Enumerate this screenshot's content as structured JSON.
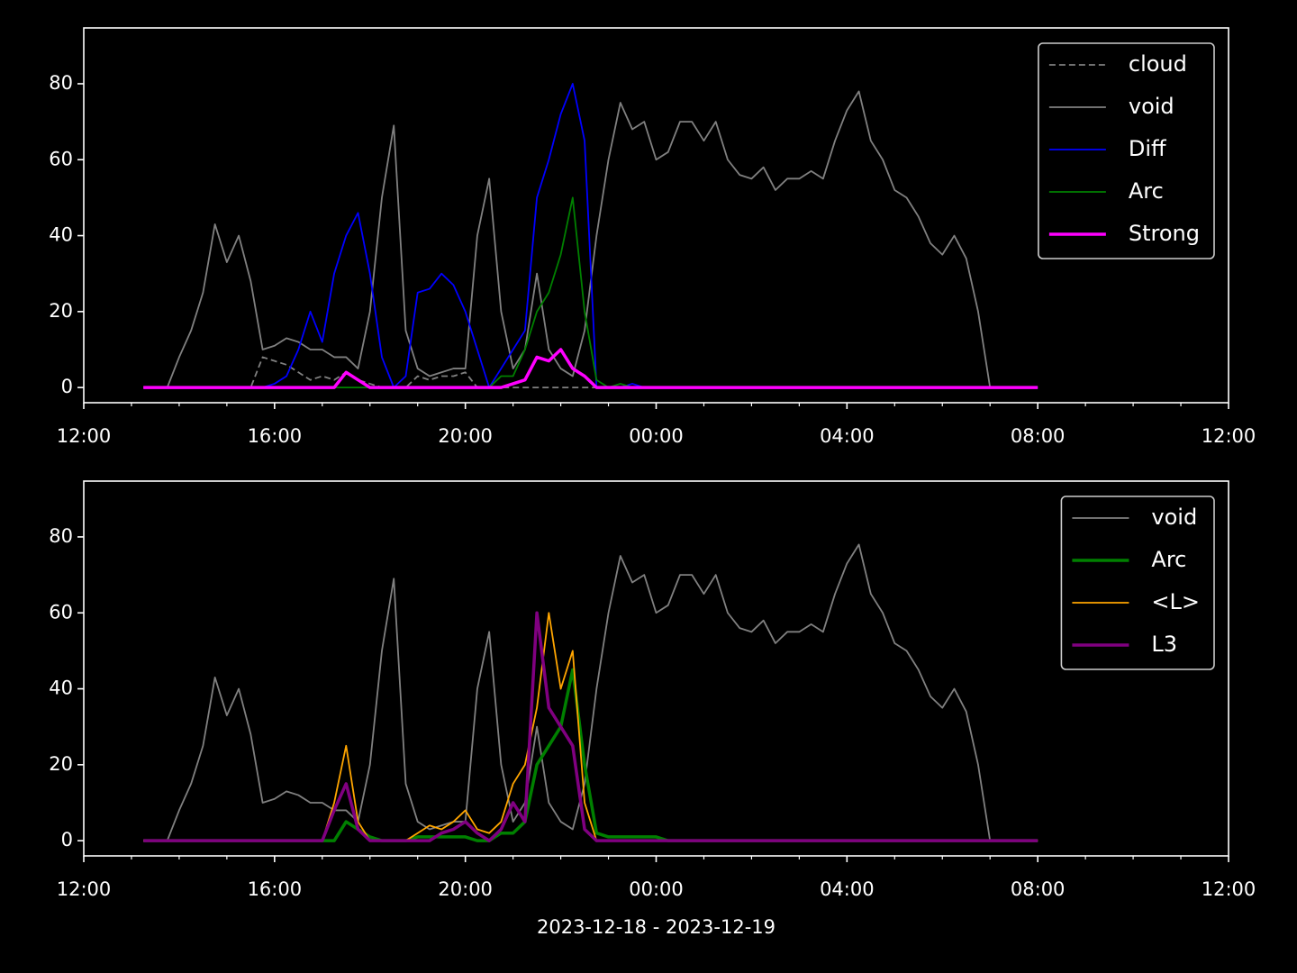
{
  "chart_data": [
    {
      "type": "line",
      "legend": "upper right",
      "xlim": [
        12,
        36
      ],
      "ylim": [
        -4,
        94.7
      ],
      "xticks": [
        {
          "value": 12,
          "label": "12:00"
        },
        {
          "value": 16,
          "label": "16:00"
        },
        {
          "value": 20,
          "label": "20:00"
        },
        {
          "value": 24,
          "label": "00:00"
        },
        {
          "value": 28,
          "label": "04:00"
        },
        {
          "value": 32,
          "label": "08:00"
        },
        {
          "value": 36,
          "label": "12:00"
        }
      ],
      "xminorticks": [
        13,
        14,
        15,
        17,
        18,
        19,
        21,
        22,
        23,
        25,
        26,
        27,
        29,
        30,
        31,
        33,
        34,
        35
      ],
      "yticks": [
        0,
        20,
        40,
        60,
        80
      ],
      "x": [
        13.25,
        13.5,
        13.75,
        14,
        14.25,
        14.5,
        14.75,
        15,
        15.25,
        15.5,
        15.75,
        16,
        16.25,
        16.5,
        16.75,
        17,
        17.25,
        17.5,
        17.75,
        18,
        18.25,
        18.5,
        18.75,
        19,
        19.25,
        19.5,
        19.75,
        20,
        20.25,
        20.5,
        20.75,
        21,
        21.25,
        21.5,
        21.75,
        22,
        22.25,
        22.5,
        22.75,
        23,
        23.25,
        23.5,
        23.75,
        24,
        24.25,
        24.5,
        24.75,
        25,
        25.25,
        25.5,
        25.75,
        26,
        26.25,
        26.5,
        26.75,
        27,
        27.25,
        27.5,
        27.75,
        28,
        28.25,
        28.5,
        28.75,
        29,
        29.25,
        29.5,
        29.75,
        30,
        30.25,
        30.5,
        30.75,
        31,
        31.25,
        31.5,
        31.75,
        32
      ],
      "series": [
        {
          "name": "cloud",
          "color": "#808080",
          "linestyle": "dashed",
          "values": [
            0,
            0,
            0,
            0,
            0,
            0,
            0,
            0,
            0,
            0,
            8,
            7,
            6,
            4,
            2,
            3,
            2,
            4,
            2,
            1,
            0,
            0,
            0,
            3,
            2,
            3,
            3,
            4,
            0,
            0,
            0,
            0,
            0,
            0,
            0,
            0,
            0,
            0,
            0,
            0,
            0,
            0,
            0,
            0,
            0,
            0,
            0,
            0,
            0,
            0,
            0,
            0,
            0,
            0,
            0,
            0,
            0,
            0,
            0,
            0,
            0,
            0,
            0,
            0,
            0,
            0,
            0,
            0,
            0,
            0,
            0,
            0,
            0,
            0,
            0,
            0
          ]
        },
        {
          "name": "void",
          "color": "#808080",
          "values": [
            0,
            0,
            0,
            8,
            15,
            25,
            43,
            33,
            40,
            28,
            10,
            11,
            13,
            12,
            10,
            10,
            8,
            8,
            5,
            20,
            50,
            69,
            15,
            5,
            3,
            4,
            5,
            5,
            40,
            55,
            20,
            5,
            10,
            30,
            10,
            5,
            3,
            15,
            40,
            60,
            75,
            68,
            70,
            60,
            62,
            70,
            70,
            65,
            70,
            60,
            56,
            55,
            58,
            52,
            55,
            55,
            57,
            55,
            65,
            73,
            78,
            65,
            60,
            52,
            50,
            45,
            38,
            35,
            40,
            34,
            20,
            0,
            0,
            0,
            0,
            0
          ]
        },
        {
          "name": "Diff",
          "color": "#0000ff",
          "values": [
            0,
            0,
            0,
            0,
            0,
            0,
            0,
            0,
            0,
            0,
            0,
            1,
            3,
            10,
            20,
            12,
            30,
            40,
            46,
            30,
            8,
            0,
            3,
            25,
            26,
            30,
            27,
            20,
            10,
            0,
            5,
            10,
            15,
            50,
            60,
            72,
            80,
            65,
            0,
            0,
            0,
            1,
            0,
            0,
            0,
            0,
            0,
            0,
            0,
            0,
            0,
            0,
            0,
            0,
            0,
            0,
            0,
            0,
            0,
            0,
            0,
            0,
            0,
            0,
            0,
            0,
            0,
            0,
            0,
            0,
            0,
            0,
            0,
            0,
            0,
            0
          ]
        },
        {
          "name": "Arc",
          "color": "#008000",
          "values": [
            0,
            0,
            0,
            0,
            0,
            0,
            0,
            0,
            0,
            0,
            0,
            0,
            0,
            0,
            0,
            0,
            0,
            0,
            0,
            0,
            0,
            0,
            0,
            0,
            0,
            0,
            0,
            0,
            0,
            0,
            3,
            3,
            10,
            20,
            25,
            35,
            50,
            20,
            2,
            0,
            1,
            0,
            0,
            0,
            0,
            0,
            0,
            0,
            0,
            0,
            0,
            0,
            0,
            0,
            0,
            0,
            0,
            0,
            0,
            0,
            0,
            0,
            0,
            0,
            0,
            0,
            0,
            0,
            0,
            0,
            0,
            0,
            0,
            0,
            0,
            0
          ]
        },
        {
          "name": "Strong",
          "color": "#ff00ff",
          "linestyle": "bold",
          "values": [
            0,
            0,
            0,
            0,
            0,
            0,
            0,
            0,
            0,
            0,
            0,
            0,
            0,
            0,
            0,
            0,
            0,
            4,
            2,
            0,
            0,
            0,
            0,
            0,
            0,
            0,
            0,
            0,
            0,
            0,
            0,
            1,
            2,
            8,
            7,
            10,
            5,
            3,
            0,
            0,
            0,
            0,
            0,
            0,
            0,
            0,
            0,
            0,
            0,
            0,
            0,
            0,
            0,
            0,
            0,
            0,
            0,
            0,
            0,
            0,
            0,
            0,
            0,
            0,
            0,
            0,
            0,
            0,
            0,
            0,
            0,
            0,
            0,
            0,
            0,
            0
          ]
        }
      ]
    },
    {
      "type": "line",
      "legend": "upper right",
      "xlabel": "2023-12-18 - 2023-12-19",
      "xlim": [
        12,
        36
      ],
      "ylim": [
        -4,
        94.7
      ],
      "xticks": [
        {
          "value": 12,
          "label": "12:00"
        },
        {
          "value": 16,
          "label": "16:00"
        },
        {
          "value": 20,
          "label": "20:00"
        },
        {
          "value": 24,
          "label": "00:00"
        },
        {
          "value": 28,
          "label": "04:00"
        },
        {
          "value": 32,
          "label": "08:00"
        },
        {
          "value": 36,
          "label": "12:00"
        }
      ],
      "xminorticks": [
        13,
        14,
        15,
        17,
        18,
        19,
        21,
        22,
        23,
        25,
        26,
        27,
        29,
        30,
        31,
        33,
        34,
        35
      ],
      "yticks": [
        0,
        20,
        40,
        60,
        80
      ],
      "x": [
        13.25,
        13.5,
        13.75,
        14,
        14.25,
        14.5,
        14.75,
        15,
        15.25,
        15.5,
        15.75,
        16,
        16.25,
        16.5,
        16.75,
        17,
        17.25,
        17.5,
        17.75,
        18,
        18.25,
        18.5,
        18.75,
        19,
        19.25,
        19.5,
        19.75,
        20,
        20.25,
        20.5,
        20.75,
        21,
        21.25,
        21.5,
        21.75,
        22,
        22.25,
        22.5,
        22.75,
        23,
        23.25,
        23.5,
        23.75,
        24,
        24.25,
        24.5,
        24.75,
        25,
        25.25,
        25.5,
        25.75,
        26,
        26.25,
        26.5,
        26.75,
        27,
        27.25,
        27.5,
        27.75,
        28,
        28.25,
        28.5,
        28.75,
        29,
        29.25,
        29.5,
        29.75,
        30,
        30.25,
        30.5,
        30.75,
        31,
        31.25,
        31.5,
        31.75,
        32
      ],
      "series": [
        {
          "name": "void",
          "color": "#808080",
          "values": [
            0,
            0,
            0,
            8,
            15,
            25,
            43,
            33,
            40,
            28,
            10,
            11,
            13,
            12,
            10,
            10,
            8,
            8,
            5,
            20,
            50,
            69,
            15,
            5,
            3,
            4,
            5,
            5,
            40,
            55,
            20,
            5,
            10,
            30,
            10,
            5,
            3,
            15,
            40,
            60,
            75,
            68,
            70,
            60,
            62,
            70,
            70,
            65,
            70,
            60,
            56,
            55,
            58,
            52,
            55,
            55,
            57,
            55,
            65,
            73,
            78,
            65,
            60,
            52,
            50,
            45,
            38,
            35,
            40,
            34,
            20,
            0,
            0,
            0,
            0,
            0
          ]
        },
        {
          "name": "Arc",
          "color": "#008000",
          "linestyle": "bold",
          "values": [
            0,
            0,
            0,
            0,
            0,
            0,
            0,
            0,
            0,
            0,
            0,
            0,
            0,
            0,
            0,
            0,
            0,
            5,
            3,
            1,
            0,
            0,
            0,
            1,
            1,
            1,
            1,
            1,
            0,
            0,
            2,
            2,
            5,
            20,
            25,
            30,
            45,
            20,
            2,
            1,
            1,
            1,
            1,
            1,
            0,
            0,
            0,
            0,
            0,
            0,
            0,
            0,
            0,
            0,
            0,
            0,
            0,
            0,
            0,
            0,
            0,
            0,
            0,
            0,
            0,
            0,
            0,
            0,
            0,
            0,
            0,
            0,
            0,
            0,
            0,
            0
          ]
        },
        {
          "name": "<L>",
          "color": "#ffa500",
          "values": [
            0,
            0,
            0,
            0,
            0,
            0,
            0,
            0,
            0,
            0,
            0,
            0,
            0,
            0,
            0,
            0,
            10,
            25,
            5,
            0,
            0,
            0,
            0,
            2,
            4,
            3,
            5,
            8,
            3,
            2,
            5,
            15,
            20,
            35,
            60,
            40,
            50,
            10,
            0,
            0,
            0,
            0,
            0,
            0,
            0,
            0,
            0,
            0,
            0,
            0,
            0,
            0,
            0,
            0,
            0,
            0,
            0,
            0,
            0,
            0,
            0,
            0,
            0,
            0,
            0,
            0,
            0,
            0,
            0,
            0,
            0,
            0,
            0,
            0,
            0,
            0
          ]
        },
        {
          "name": "L3",
          "color": "#800080",
          "linestyle": "bold",
          "values": [
            0,
            0,
            0,
            0,
            0,
            0,
            0,
            0,
            0,
            0,
            0,
            0,
            0,
            0,
            0,
            0,
            8,
            15,
            3,
            0,
            0,
            0,
            0,
            0,
            0,
            2,
            3,
            5,
            2,
            0,
            3,
            10,
            5,
            60,
            35,
            30,
            25,
            3,
            0,
            0,
            0,
            0,
            0,
            0,
            0,
            0,
            0,
            0,
            0,
            0,
            0,
            0,
            0,
            0,
            0,
            0,
            0,
            0,
            0,
            0,
            0,
            0,
            0,
            0,
            0,
            0,
            0,
            0,
            0,
            0,
            0,
            0,
            0,
            0,
            0,
            0
          ]
        }
      ]
    }
  ]
}
